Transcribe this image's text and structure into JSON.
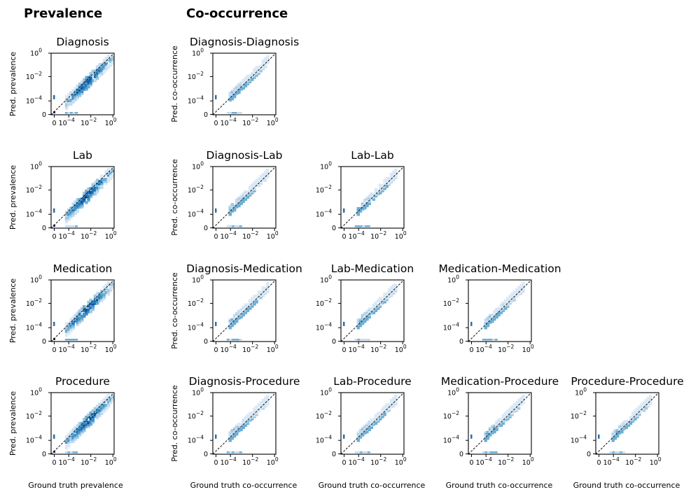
{
  "chart_data": {
    "type": "heatmap",
    "sections": {
      "prevalence": "Prevalence",
      "cooccurrence": "Co-occurrence"
    },
    "xlabels": {
      "prevalence": "Ground truth prevalence",
      "cooccurrence": "Ground truth co-occurrence"
    },
    "ylabels": {
      "prevalence": "Pred. prevalence",
      "cooccurrence": "Pred. co-occurrence"
    },
    "ticks": {
      "x": [
        {
          "m": "0",
          "e": ""
        },
        {
          "m": "10",
          "e": "−4"
        },
        {
          "m": "10",
          "e": "−2"
        },
        {
          "m": "10",
          "e": "0"
        }
      ],
      "y": [
        {
          "m": "10",
          "e": "0"
        },
        {
          "m": "10",
          "e": "−2"
        },
        {
          "m": "10",
          "e": "−4"
        },
        {
          "m": "0",
          "e": ""
        }
      ]
    },
    "axis_scale": "symlog",
    "reference_line": "y = x (dashed)",
    "panels": [
      {
        "title": "Diagnosis",
        "kind": "prevalence"
      },
      {
        "title": "Diagnosis-Diagnosis",
        "kind": "cooccurrence"
      },
      {
        "title": "Lab",
        "kind": "prevalence"
      },
      {
        "title": "Diagnosis-Lab",
        "kind": "cooccurrence"
      },
      {
        "title": "Lab-Lab",
        "kind": "cooccurrence"
      },
      {
        "title": "Medication",
        "kind": "prevalence"
      },
      {
        "title": "Diagnosis-Medication",
        "kind": "cooccurrence"
      },
      {
        "title": "Lab-Medication",
        "kind": "cooccurrence"
      },
      {
        "title": "Medication-Medication",
        "kind": "cooccurrence"
      },
      {
        "title": "Procedure",
        "kind": "prevalence"
      },
      {
        "title": "Diagnosis-Procedure",
        "kind": "cooccurrence"
      },
      {
        "title": "Lab-Procedure",
        "kind": "cooccurrence"
      },
      {
        "title": "Medication-Procedure",
        "kind": "cooccurrence"
      },
      {
        "title": "Procedure-Procedure",
        "kind": "cooccurrence"
      }
    ]
  }
}
